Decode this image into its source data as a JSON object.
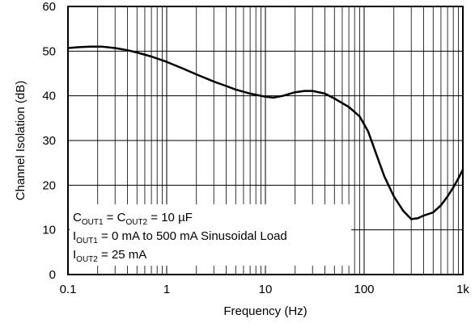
{
  "chart_data": {
    "type": "line",
    "title": "",
    "xlabel": "Frequency (Hz)",
    "ylabel": "Channel Isolation (dB)",
    "x_scale": "log",
    "xlim": [
      0.1,
      1000
    ],
    "ylim": [
      0,
      60
    ],
    "grid": true,
    "x_ticks": [
      {
        "value": 0.1,
        "label": "0.1"
      },
      {
        "value": 1,
        "label": "1"
      },
      {
        "value": 10,
        "label": "10"
      },
      {
        "value": 100,
        "label": "100"
      },
      {
        "value": 1000,
        "label": "1k"
      }
    ],
    "y_ticks": [
      {
        "value": 0,
        "label": "0"
      },
      {
        "value": 10,
        "label": "10"
      },
      {
        "value": 20,
        "label": "20"
      },
      {
        "value": 30,
        "label": "30"
      },
      {
        "value": 40,
        "label": "40"
      },
      {
        "value": 50,
        "label": "50"
      },
      {
        "value": 60,
        "label": "60"
      }
    ],
    "series": [
      {
        "color": "#000000",
        "points": [
          [
            0.1,
            50.7
          ],
          [
            0.13,
            50.9
          ],
          [
            0.17,
            51.0
          ],
          [
            0.22,
            51.0
          ],
          [
            0.3,
            50.7
          ],
          [
            0.4,
            50.2
          ],
          [
            0.5,
            49.7
          ],
          [
            0.7,
            48.8
          ],
          [
            1.0,
            47.6
          ],
          [
            1.5,
            46.0
          ],
          [
            2.0,
            44.8
          ],
          [
            3.0,
            43.2
          ],
          [
            4.0,
            42.2
          ],
          [
            5.0,
            41.4
          ],
          [
            7.0,
            40.5
          ],
          [
            10.0,
            39.8
          ],
          [
            12.0,
            39.6
          ],
          [
            15.0,
            40.0
          ],
          [
            20.0,
            40.8
          ],
          [
            25.0,
            41.1
          ],
          [
            30.0,
            41.1
          ],
          [
            40.0,
            40.5
          ],
          [
            50.0,
            39.4
          ],
          [
            70.0,
            37.5
          ],
          [
            90.0,
            35.4
          ],
          [
            110.0,
            32.0
          ],
          [
            130.0,
            27.5
          ],
          [
            160.0,
            22.0
          ],
          [
            200.0,
            17.5
          ],
          [
            250.0,
            14.2
          ],
          [
            300.0,
            12.4
          ],
          [
            350.0,
            12.6
          ],
          [
            400.0,
            13.2
          ],
          [
            500.0,
            13.9
          ],
          [
            600.0,
            15.5
          ],
          [
            700.0,
            17.5
          ],
          [
            800.0,
            19.5
          ],
          [
            900.0,
            21.5
          ],
          [
            1000.0,
            23.5
          ]
        ]
      }
    ],
    "annotation": {
      "lines": [
        [
          {
            "t": "C",
            "sub": false
          },
          {
            "t": "OUT1",
            "sub": true
          },
          {
            "t": " = C",
            "sub": false
          },
          {
            "t": "OUT2",
            "sub": true
          },
          {
            "t": " = 10 µF",
            "sub": false
          }
        ],
        [
          {
            "t": "I",
            "sub": false
          },
          {
            "t": "OUT1",
            "sub": true
          },
          {
            "t": " = 0 mA to 500 mA Sinusoidal Load",
            "sub": false
          }
        ],
        [
          {
            "t": "I",
            "sub": false
          },
          {
            "t": "OUT2",
            "sub": true
          },
          {
            "t": " = 25 mA",
            "sub": false
          }
        ]
      ],
      "position": "bottom-left"
    }
  }
}
